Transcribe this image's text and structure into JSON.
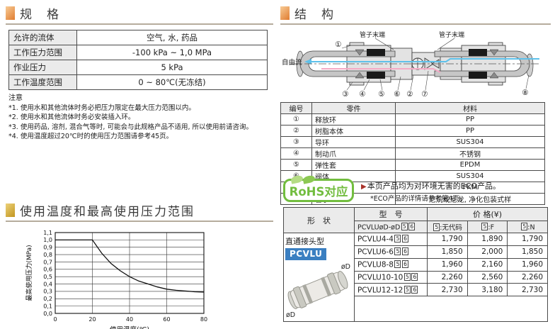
{
  "colors": {
    "accent_orange": "#e07c30",
    "accent_gold": "#c2951f",
    "rohs_green": "#72bd3f",
    "series_badge_blue": "#3a7fc1",
    "flow_blue": "#5ec1ea",
    "flow_pink": "#f5aac6"
  },
  "spec_section": {
    "title": "规　格",
    "rows": [
      {
        "label": "允许的流体",
        "value": "空气, 水, 药品"
      },
      {
        "label": "工作压力范围",
        "value": "-100 kPa ~ 1,0 MPa"
      },
      {
        "label": "作业压力",
        "value": "5 kPa"
      },
      {
        "label": "工作温度范围",
        "value": "0 ~ 80℃(无冻结)"
      }
    ],
    "notes_title": "注意",
    "notes": [
      "*1. 使用水和其他流体时务必把压力限定在最大压力范围以内。",
      "*2. 使用水和其他流体时务必安装插入环。",
      "*3. 使用药品, 溶剂, 混合气等时, 可能会与此规格产品不适用, 所以使用前请咨询。",
      "*4. 使用温度超过20℃时的使用压力范围请参考45页。"
    ]
  },
  "structure_section": {
    "title": "结　构",
    "labels": {
      "tube_end_left": "管子末端",
      "tube_end_right": "管子末端",
      "free_flow": "自由流",
      "c1": "①",
      "c2": "②",
      "c3": "③",
      "c4": "④",
      "c5": "⑤",
      "c6": "⑥",
      "c7": "⑦",
      "c8": "⑧"
    },
    "parts_table": {
      "headers": [
        "编号",
        "零件",
        "材料"
      ],
      "rows": [
        [
          "①",
          "释放环",
          "PP"
        ],
        [
          "②",
          "树脂本体",
          "PP"
        ],
        [
          "③",
          "导环",
          "SUS304"
        ],
        [
          "④",
          "制动爪",
          "不锈钢"
        ],
        [
          "⑤",
          "弹性套",
          "EPDM"
        ],
        [
          "⑥",
          "阀体",
          "SUS304"
        ],
        [
          "⑦",
          "阀体控件",
          "FKM"
        ],
        [
          "⑧",
          "管子",
          "尼烷或尼龙, 净化包装式样"
        ]
      ]
    }
  },
  "chart_section": {
    "title": "使用温度和最高使用压力范围"
  },
  "chart_data": {
    "type": "line",
    "title": "使用温度和最高使用压力范围",
    "xlabel": "使用温度(℃)",
    "ylabel": "最高使用压力(MPa)",
    "xlim": [
      0,
      80
    ],
    "ylim": [
      0,
      1.1
    ],
    "x_ticks": [
      0,
      20,
      40,
      60,
      80
    ],
    "x_tick_labels": [
      "0",
      "20",
      "40",
      "60",
      "80"
    ],
    "y_ticks": [
      0,
      0.1,
      0.2,
      0.3,
      0.4,
      0.5,
      0.6,
      0.7,
      0.8,
      0.9,
      1.0,
      1.1
    ],
    "y_tick_labels": [
      "0,0",
      "0,1",
      "0,2",
      "0,3",
      "0,4",
      "0,5",
      "0,6",
      "0,7",
      "0,8",
      "0,9",
      "1,0",
      "1,1"
    ],
    "grid": true,
    "legend": false,
    "series": [
      {
        "name": "最高使用压力",
        "x": [
          0,
          20,
          25,
          30,
          35,
          40,
          45,
          50,
          55,
          60,
          65,
          70,
          75,
          80
        ],
        "y": [
          1.0,
          1.0,
          0.82,
          0.68,
          0.58,
          0.5,
          0.44,
          0.4,
          0.36,
          0.33,
          0.315,
          0.305,
          0.295,
          0.29
        ]
      }
    ]
  },
  "rohs_section": {
    "badge_text": "RoHS对应",
    "arrow": "▶",
    "eco_line1": "本页产品均为对环境无害的ECO产品。",
    "eco_line2": "*ECO产品的详情请参考第4页。"
  },
  "price_table": {
    "shape_header": "形　状",
    "model_header": "型　号",
    "model_sub_base": "PCVLUøD-øD",
    "price_header": "价 格(¥)",
    "box5": "5",
    "box6": "6",
    "price_cols": [
      ":无代码",
      ":F",
      ":N"
    ],
    "shape_type_label": "直通接头型",
    "series_badge": "PCVLU",
    "dia_label_top": "øD",
    "dia_label_bottom": "øD",
    "rows": [
      {
        "model": "PCVLU4-4",
        "prices": [
          "1,790",
          "1,890",
          "1,790"
        ]
      },
      {
        "model": "PCVLU6-6",
        "prices": [
          "1,850",
          "2,000",
          "1,850"
        ]
      },
      {
        "model": "PCVLU8-8",
        "prices": [
          "1,960",
          "2,160",
          "1,960"
        ]
      },
      {
        "model": "PCVLU10-10",
        "prices": [
          "2,260",
          "2,560",
          "2,260"
        ]
      },
      {
        "model": "PCVLU12-12",
        "prices": [
          "2,730",
          "3,180",
          "2,730"
        ]
      }
    ]
  }
}
